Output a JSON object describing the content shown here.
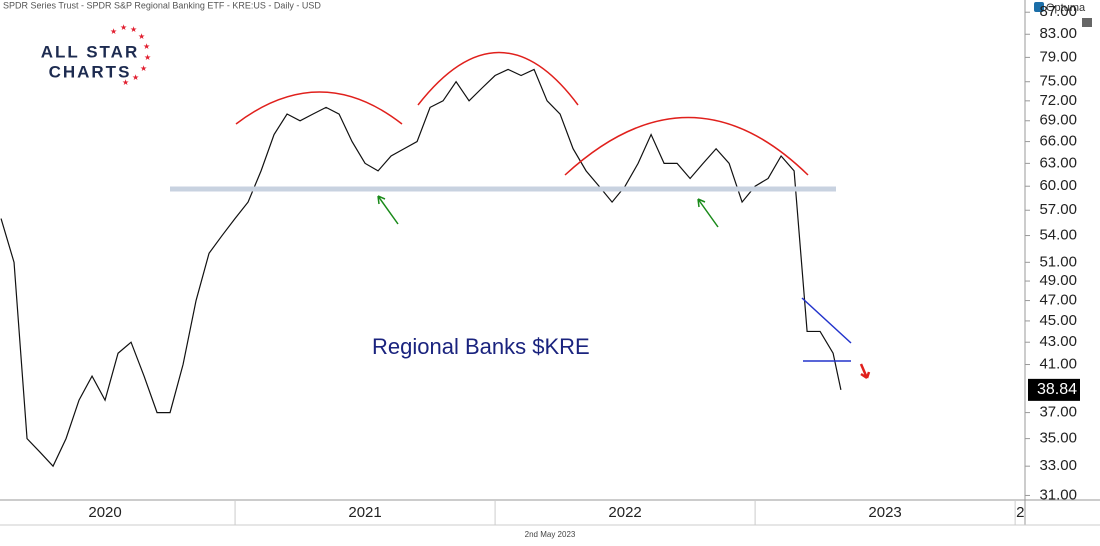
{
  "header": "SPDR Series Trust - SPDR S&P Regional Banking ETF - KRE:US - Daily - USD",
  "brand": "Optuma",
  "logo": {
    "line1": "ALL STAR",
    "line2": "CHARTS"
  },
  "footer_date": "2nd May 2023",
  "chart_data": {
    "type": "line",
    "annotation": "Regional Banks $KRE",
    "log_y": true,
    "x": [
      2020.1,
      2020.15,
      2020.2,
      2020.25,
      2020.3,
      2020.35,
      2020.4,
      2020.45,
      2020.5,
      2020.55,
      2020.6,
      2020.65,
      2020.7,
      2020.75,
      2020.8,
      2020.85,
      2020.9,
      2020.95,
      2021.0,
      2021.05,
      2021.1,
      2021.15,
      2021.2,
      2021.25,
      2021.3,
      2021.35,
      2021.4,
      2021.45,
      2021.5,
      2021.55,
      2021.6,
      2021.65,
      2021.7,
      2021.75,
      2021.8,
      2021.85,
      2021.9,
      2021.95,
      2022.0,
      2022.05,
      2022.1,
      2022.15,
      2022.2,
      2022.25,
      2022.3,
      2022.35,
      2022.4,
      2022.45,
      2022.5,
      2022.55,
      2022.6,
      2022.65,
      2022.7,
      2022.75,
      2022.8,
      2022.85,
      2022.9,
      2022.95,
      2023.0,
      2023.05,
      2023.1,
      2023.15,
      2023.2,
      2023.25,
      2023.3,
      2023.33
    ],
    "series": [
      {
        "name": "KRE",
        "color": "#111111",
        "values": [
          56,
          51,
          35,
          34,
          33,
          35,
          38,
          40,
          38,
          42,
          43,
          40,
          37,
          37,
          41,
          47,
          52,
          54,
          56,
          58,
          62,
          67,
          70,
          69,
          70,
          71,
          70,
          66,
          63,
          62,
          64,
          65,
          66,
          71,
          72,
          75,
          72,
          74,
          76,
          77,
          76,
          77,
          72,
          70,
          65,
          62,
          60,
          58,
          60,
          63,
          67,
          63,
          63,
          61,
          63,
          65,
          63,
          58,
          60,
          61,
          64,
          62,
          44,
          44,
          42,
          38.84
        ]
      }
    ],
    "xlim": [
      2020.096,
      2024.038
    ],
    "xticks": [
      2021,
      2022,
      2023,
      2024
    ],
    "xtick_labels": [
      {
        "value": 2020.5,
        "label": "2020"
      },
      {
        "value": 2021.5,
        "label": "2021"
      },
      {
        "value": 2022.5,
        "label": "2022"
      },
      {
        "value": 2023.5,
        "label": "2023"
      },
      {
        "value": 2024.02,
        "label": "2"
      }
    ],
    "ylim": [
      30.7,
      89.3
    ],
    "yticks": [
      {
        "value": 31,
        "label": "31.00"
      },
      {
        "value": 33,
        "label": "33.00"
      },
      {
        "value": 35,
        "label": "35.00"
      },
      {
        "value": 37,
        "label": "37.00"
      },
      {
        "value": 41,
        "label": "41.00"
      },
      {
        "value": 43,
        "label": "43.00"
      },
      {
        "value": 45,
        "label": "45.00"
      },
      {
        "value": 47,
        "label": "47.00"
      },
      {
        "value": 49,
        "label": "49.00"
      },
      {
        "value": 51,
        "label": "51.00"
      },
      {
        "value": 54,
        "label": "54.00"
      },
      {
        "value": 57,
        "label": "57.00"
      },
      {
        "value": 60,
        "label": "60.00"
      },
      {
        "value": 63,
        "label": "63.00"
      },
      {
        "value": 66,
        "label": "66.00"
      },
      {
        "value": 69,
        "label": "69.00"
      },
      {
        "value": 72,
        "label": "72.00"
      },
      {
        "value": 75,
        "label": "75.00"
      },
      {
        "value": 79,
        "label": "79.00"
      },
      {
        "value": 83,
        "label": "83.00"
      },
      {
        "value": 87,
        "label": "87.00"
      }
    ]
  }
}
